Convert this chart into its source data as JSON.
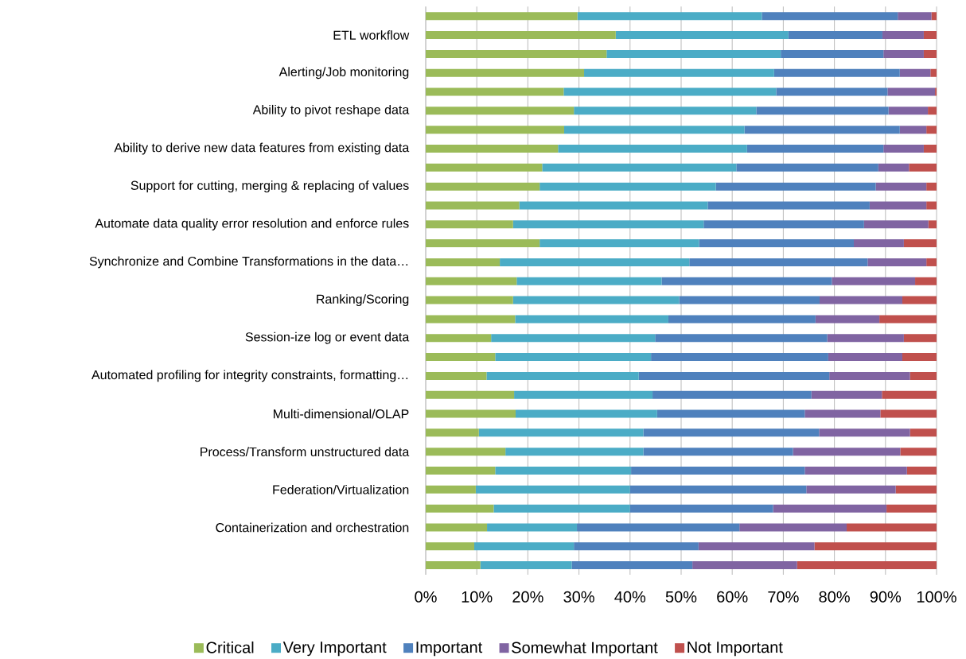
{
  "chart_data": {
    "type": "bar",
    "orientation": "horizontal",
    "stacked": true,
    "categories": [
      null,
      "ETL workflow",
      null,
      "Alerting/Job monitoring",
      null,
      "Ability to pivot reshape data",
      null,
      "Ability to derive new data features from existing data",
      null,
      "Support for cutting, merging & replacing of values",
      null,
      "Automate data quality error resolution and enforce rules",
      null,
      "Synchronize and Combine Transformations in the data…",
      null,
      "Ranking/Scoring",
      null,
      "Session-ize log or event data",
      null,
      "Automated profiling for integrity constraints, formatting…",
      null,
      "Multi-dimensional/OLAP",
      null,
      "Process/Transform unstructured data",
      null,
      "Federation/Virtualization",
      null,
      "Containerization and orchestration",
      null,
      null
    ],
    "series": [
      {
        "name": "Critical",
        "color": "#9bbb59",
        "values": [
          29.7,
          37.2,
          35.4,
          31.0,
          27.0,
          29.0,
          27.1,
          25.9,
          22.8,
          22.3,
          18.3,
          17.1,
          22.3,
          14.5,
          17.8,
          17.1,
          17.5,
          12.8,
          13.6,
          11.9,
          17.3,
          17.6,
          10.4,
          15.6,
          13.6,
          9.8,
          13.3,
          12.0,
          9.5,
          10.7
        ]
      },
      {
        "name": "Very Important",
        "color": "#4bacc6",
        "values": [
          36.1,
          33.8,
          34.1,
          37.2,
          41.6,
          35.7,
          35.3,
          37.0,
          38.0,
          34.5,
          36.9,
          37.3,
          31.2,
          37.1,
          28.4,
          32.5,
          30.0,
          32.1,
          30.5,
          29.8,
          27.1,
          27.7,
          32.2,
          27.0,
          26.6,
          30.2,
          26.7,
          17.6,
          19.5,
          17.9
        ]
      },
      {
        "name": "Important",
        "color": "#4f81bd",
        "values": [
          26.6,
          18.4,
          20.1,
          24.6,
          21.8,
          25.9,
          30.4,
          26.7,
          27.8,
          31.3,
          31.7,
          31.4,
          30.3,
          34.9,
          33.3,
          27.5,
          28.8,
          33.7,
          34.7,
          37.3,
          31.1,
          28.9,
          34.4,
          29.3,
          34.0,
          34.5,
          28.0,
          31.8,
          24.4,
          23.6
        ]
      },
      {
        "name": "Somewhat Important",
        "color": "#8064a2",
        "values": [
          6.6,
          8.1,
          7.9,
          6.0,
          9.3,
          7.7,
          5.2,
          7.9,
          6.0,
          9.9,
          11.1,
          12.6,
          9.8,
          11.5,
          16.3,
          16.2,
          12.5,
          15.0,
          14.5,
          15.8,
          13.8,
          14.8,
          17.8,
          21.0,
          20.0,
          17.5,
          22.2,
          21.0,
          22.7,
          20.5
        ]
      },
      {
        "name": "Not Important",
        "color": "#c0504d",
        "values": [
          1.0,
          2.5,
          2.5,
          1.2,
          0.3,
          1.7,
          2.0,
          2.5,
          5.4,
          2.0,
          2.0,
          1.6,
          6.4,
          2.0,
          4.2,
          6.7,
          11.2,
          6.4,
          6.7,
          5.2,
          10.7,
          11.0,
          5.2,
          7.1,
          5.8,
          8.0,
          9.8,
          17.6,
          23.9,
          27.3
        ]
      }
    ],
    "xlim": [
      0,
      100
    ],
    "xticks": [
      {
        "value": 0,
        "label": "0%"
      },
      {
        "value": 10,
        "label": "10%"
      },
      {
        "value": 20,
        "label": "20%"
      },
      {
        "value": 30,
        "label": "30%"
      },
      {
        "value": 40,
        "label": "40%"
      },
      {
        "value": 50,
        "label": "50%"
      },
      {
        "value": 60,
        "label": "60%"
      },
      {
        "value": 70,
        "label": "70%"
      },
      {
        "value": 80,
        "label": "80%"
      },
      {
        "value": 90,
        "label": "90%"
      },
      {
        "value": 100,
        "label": "100%"
      }
    ],
    "grid": "x",
    "legend": "bottom"
  }
}
